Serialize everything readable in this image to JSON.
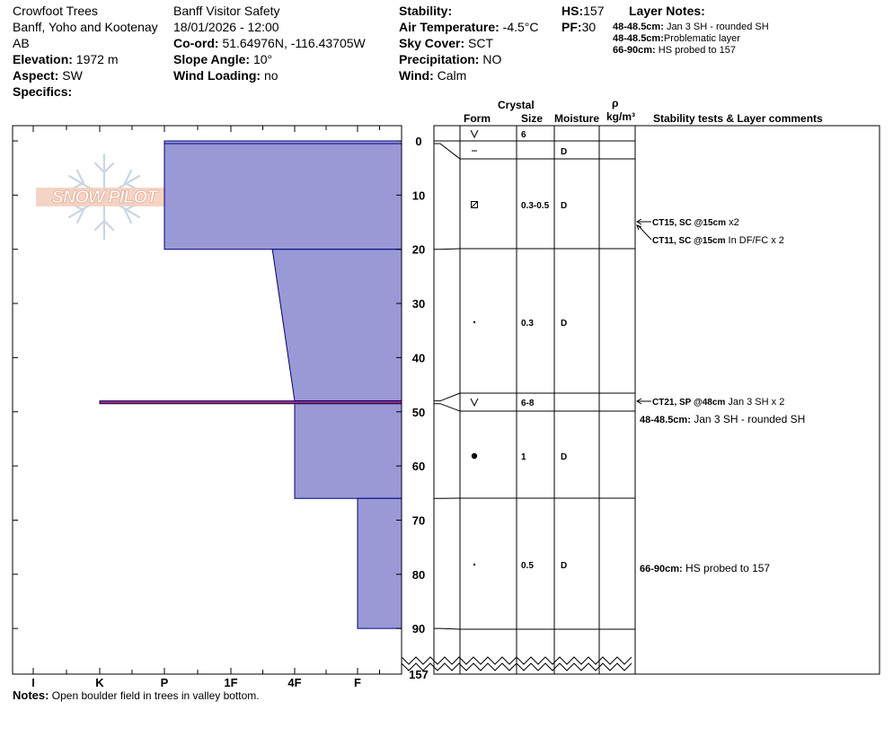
{
  "header": {
    "location_name": "Crowfoot Trees",
    "region": "Banff, Yoho and Kootenay",
    "province": "AB",
    "elevation_label": "Elevation:",
    "elevation": "1972 m",
    "aspect_label": "Aspect:",
    "aspect": "SW",
    "specifics_label": "Specifics:",
    "observer": "Banff  Visitor Safety",
    "datetime": "18/01/2026 - 12:00",
    "coord_label": "Co-ord:",
    "coord": "51.64976N, -116.43705W",
    "slope_label": "Slope Angle:",
    "slope": "10°",
    "wind_loading_label": "Wind Loading:",
    "wind_loading": "no",
    "stability_label": "Stability:",
    "air_temp_label": "Air Temperature:",
    "air_temp": "-4.5°C",
    "sky_label": "Sky Cover:",
    "sky": "SCT",
    "precip_label": "Precipitation:",
    "precip": "NO",
    "wind_label": "Wind:",
    "wind": "Calm",
    "hs_label": "HS:",
    "hs": "157",
    "pf_label": "PF:",
    "pf": "30"
  },
  "layer_notes": {
    "title": "Layer Notes:",
    "items": [
      {
        "depth": "48-48.5cm:",
        "text": "Jan 3 SH - rounded SH"
      },
      {
        "depth": "48-48.5cm:",
        "text": "Problematic layer"
      },
      {
        "depth": "66-90cm:",
        "text": "HS probed to 157"
      }
    ]
  },
  "logo": {
    "text": "SNOW PILOT"
  },
  "columns": {
    "crystal": "Crystal",
    "form": "Form",
    "size": "Size",
    "moisture": "Moisture",
    "rho": "ρ",
    "density_unit": "kg/m³",
    "comments": "Stability tests & Layer comments"
  },
  "hardness_scale": [
    "I",
    "K",
    "P",
    "1F",
    "4F",
    "F"
  ],
  "depth_ticks": [
    "0",
    "10",
    "20",
    "30",
    "40",
    "50",
    "60",
    "70",
    "80",
    "90"
  ],
  "bottom_depth": "157",
  "hardness_profile": [
    {
      "top": 0,
      "bottom": 0.5,
      "hardness": 4.0,
      "fill": "#9999d6"
    },
    {
      "top": 0.5,
      "bottom": 20,
      "hardness": 4.0,
      "fill": "#9999d6"
    },
    {
      "top": 20,
      "bottom": 48,
      "hardness_top": 2.35,
      "hardness_bottom": 2.0,
      "fill": "#9999d6"
    },
    {
      "top": 48,
      "bottom": 48.5,
      "hardness": 5.0,
      "fill": "#b03050"
    },
    {
      "top": 48.5,
      "bottom": 66,
      "hardness": 2.0,
      "fill": "#9999d6"
    },
    {
      "top": 66,
      "bottom": 90,
      "hardness": 1.0,
      "fill": "#9999d6"
    }
  ],
  "layers": [
    {
      "y": 0,
      "form": "surface-hoar",
      "size": "6",
      "moisture": ""
    },
    {
      "y": 3,
      "form": "precipitation-particles",
      "size": "",
      "moisture": "D"
    },
    {
      "y": 12,
      "form": "faceted-crystals",
      "size": "0.3-0.5",
      "moisture": "D"
    },
    {
      "y": 34,
      "form": "rounded-grains",
      "size": "0.3",
      "moisture": "D"
    },
    {
      "y": 48.2,
      "form": "surface-hoar",
      "size": "6-8",
      "moisture": ""
    },
    {
      "y": 58,
      "form": "rounded-grains-large",
      "size": "1",
      "moisture": "D"
    },
    {
      "y": 78,
      "form": "rounded-grains",
      "size": "0.5",
      "moisture": "D"
    }
  ],
  "comments": [
    {
      "bold": "CT15, SC @15cm",
      "text": " x2"
    },
    {
      "bold": "CT11, SC @15cm",
      "text": "  In DF/FC x 2"
    },
    {
      "bold": "CT21, SP @48cm",
      "text": " Jan 3 SH x 2"
    },
    {
      "bold": "48-48.5cm:",
      "text": " Jan 3 SH - rounded SH"
    },
    {
      "bold": "66-90cm:",
      "text": " HS probed to 157"
    }
  ],
  "notes": {
    "label": "Notes:",
    "text": "Open boulder field in trees in valley bottom."
  }
}
